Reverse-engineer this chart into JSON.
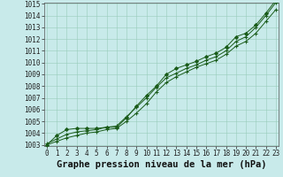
{
  "xlabel": "Graphe pression niveau de la mer (hPa)",
  "ylim": [
    1003,
    1015
  ],
  "xlim": [
    0,
    23
  ],
  "yticks": [
    1003,
    1004,
    1005,
    1006,
    1007,
    1008,
    1009,
    1010,
    1011,
    1012,
    1013,
    1014,
    1015
  ],
  "xticks": [
    0,
    1,
    2,
    3,
    4,
    5,
    6,
    7,
    8,
    9,
    10,
    11,
    12,
    13,
    14,
    15,
    16,
    17,
    18,
    19,
    20,
    21,
    22,
    23
  ],
  "bg_color": "#c8eaea",
  "grid_color": "#99ccbb",
  "line_color": "#1a5c1a",
  "line1": [
    1003.1,
    1003.5,
    1003.9,
    1004.1,
    1004.2,
    1004.3,
    1004.5,
    1004.6,
    1005.4,
    1006.2,
    1007.0,
    1007.9,
    1008.7,
    1009.1,
    1009.5,
    1009.8,
    1010.2,
    1010.5,
    1011.0,
    1011.8,
    1012.2,
    1013.0,
    1014.0,
    1015.1
  ],
  "line2": [
    1003.0,
    1003.3,
    1003.6,
    1003.8,
    1004.0,
    1004.1,
    1004.3,
    1004.4,
    1005.0,
    1005.7,
    1006.5,
    1007.5,
    1008.3,
    1008.8,
    1009.2,
    1009.6,
    1009.9,
    1010.2,
    1010.7,
    1011.4,
    1011.8,
    1012.5,
    1013.5,
    1014.5
  ],
  "line3": [
    1003.0,
    1003.8,
    1004.3,
    1004.4,
    1004.4,
    1004.4,
    1004.5,
    1004.5,
    1005.3,
    1006.3,
    1007.2,
    1008.0,
    1009.0,
    1009.5,
    1009.8,
    1010.1,
    1010.5,
    1010.8,
    1011.3,
    1012.2,
    1012.5,
    1013.2,
    1014.2,
    1015.3
  ],
  "tick_fontsize": 5.5,
  "xlabel_fontsize": 7.5,
  "xlabel_bold": true
}
